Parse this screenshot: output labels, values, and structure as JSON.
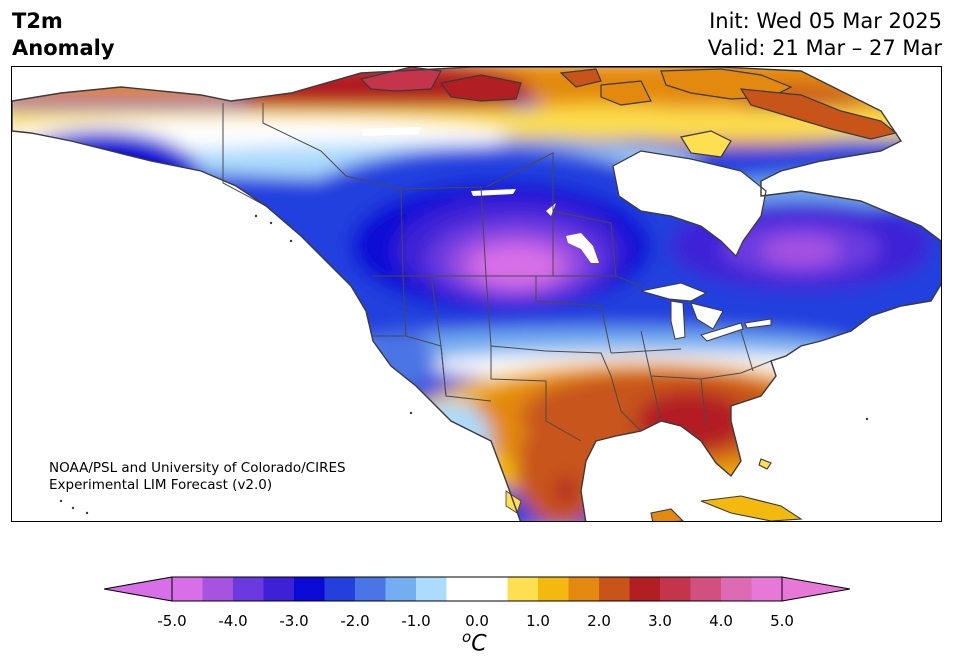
{
  "title": {
    "left_line1": "T2m",
    "left_line2": "Anomaly",
    "init": "Init: Wed 05 Mar 2025",
    "valid": "Valid: 21 Mar – 27 Mar"
  },
  "credit": {
    "line1": "NOAA/PSL and University of Colorado/CIRES",
    "line2": "Experimental LIM Forecast (v2.0)"
  },
  "colorbar": {
    "unit_base": "C",
    "unit_sup": "o",
    "tick_labels": [
      "-5.0",
      "-4.0",
      "-3.0",
      "-2.0",
      "-1.0",
      "0.0",
      "1.0",
      "2.0",
      "3.0",
      "4.0",
      "5.0"
    ],
    "colors": [
      "#d86fe8",
      "#a653e0",
      "#6a3ae0",
      "#3e21d6",
      "#0a0ad6",
      "#2340de",
      "#4b74e4",
      "#74aef0",
      "#acdcfb",
      "#ffffff",
      "#ffffff",
      "#fddf4f",
      "#f3b90f",
      "#e3890f",
      "#c8541a",
      "#b21f22",
      "#c4344a",
      "#d25080",
      "#de6ab4",
      "#e878d8"
    ],
    "under_color": "#d86fe8",
    "over_color": "#e878d8"
  },
  "map": {
    "region": "North America",
    "palette": {
      "ocean": "#ffffff",
      "coast": "#3a3a3a",
      "border": "#4a4a4a"
    }
  }
}
